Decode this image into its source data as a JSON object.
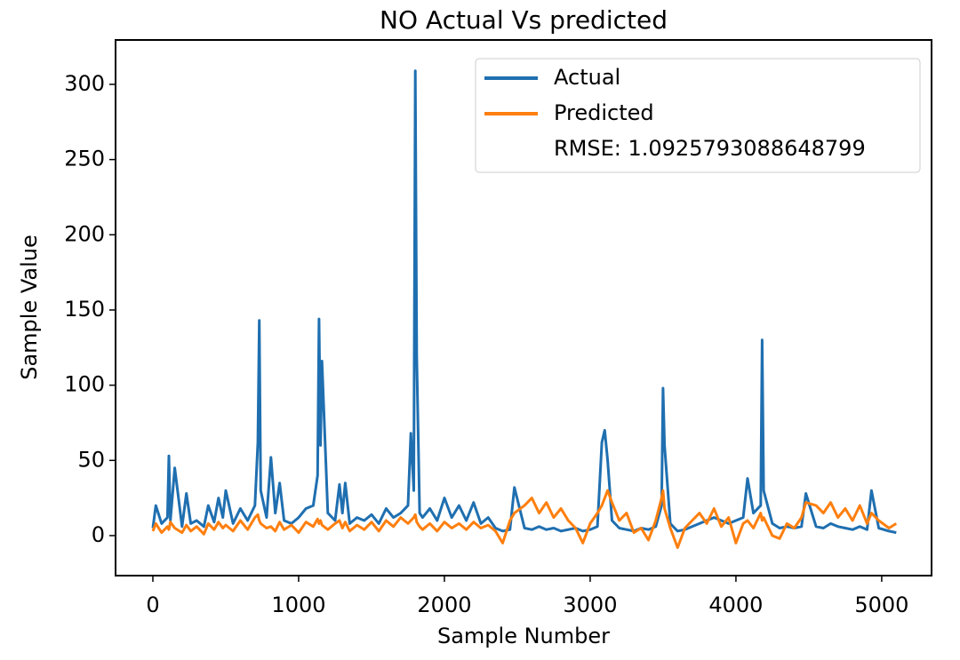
{
  "chart_data": {
    "type": "line",
    "title": "NO Actual Vs predicted",
    "x_label": "Sample Number",
    "y_label": "Sample Value",
    "x": [
      0,
      20,
      60,
      100,
      110,
      120,
      150,
      200,
      230,
      260,
      300,
      350,
      380,
      420,
      450,
      480,
      500,
      550,
      600,
      650,
      700,
      720,
      730,
      740,
      780,
      810,
      840,
      870,
      900,
      950,
      1000,
      1050,
      1100,
      1130,
      1140,
      1150,
      1160,
      1200,
      1250,
      1280,
      1300,
      1320,
      1350,
      1400,
      1450,
      1500,
      1550,
      1600,
      1650,
      1700,
      1750,
      1770,
      1790,
      1800,
      1810,
      1830,
      1850,
      1900,
      1950,
      2000,
      2050,
      2100,
      2150,
      2200,
      2250,
      2300,
      2350,
      2400,
      2450,
      2480,
      2550,
      2600,
      2650,
      2700,
      2750,
      2800,
      2850,
      2900,
      2950,
      3000,
      3050,
      3080,
      3100,
      3120,
      3150,
      3200,
      3250,
      3300,
      3350,
      3400,
      3450,
      3490,
      3500,
      3510,
      3550,
      3600,
      3650,
      3700,
      3750,
      3800,
      3850,
      3900,
      3950,
      4000,
      4050,
      4080,
      4120,
      4170,
      4180,
      4190,
      4250,
      4300,
      4350,
      4400,
      4450,
      4480,
      4550,
      4600,
      4650,
      4700,
      4750,
      4800,
      4850,
      4900,
      4930,
      4980,
      5050,
      5100
    ],
    "series": [
      {
        "name": "Actual",
        "color": "#1f6fb0",
        "values": [
          5,
          20,
          8,
          12,
          53,
          10,
          45,
          6,
          28,
          8,
          10,
          6,
          20,
          9,
          25,
          12,
          30,
          8,
          18,
          10,
          20,
          62,
          143,
          30,
          12,
          52,
          15,
          35,
          10,
          8,
          12,
          18,
          20,
          40,
          144,
          60,
          116,
          15,
          10,
          34,
          15,
          35,
          8,
          12,
          10,
          14,
          8,
          18,
          12,
          15,
          20,
          68,
          30,
          309,
          120,
          15,
          12,
          18,
          10,
          25,
          12,
          20,
          10,
          22,
          8,
          12,
          5,
          3,
          4,
          32,
          5,
          4,
          6,
          4,
          5,
          3,
          4,
          5,
          3,
          4,
          6,
          62,
          70,
          50,
          10,
          5,
          4,
          3,
          5,
          4,
          6,
          20,
          98,
          60,
          8,
          3,
          4,
          6,
          8,
          10,
          12,
          10,
          8,
          10,
          12,
          38,
          15,
          20,
          130,
          30,
          8,
          5,
          6,
          5,
          6,
          28,
          6,
          5,
          8,
          6,
          5,
          4,
          6,
          4,
          30,
          5,
          3,
          2
        ]
      },
      {
        "name": "Predicted",
        "color": "#ff7f0e",
        "values": [
          3,
          8,
          2,
          6,
          4,
          9,
          5,
          2,
          7,
          3,
          6,
          1,
          8,
          4,
          9,
          5,
          7,
          3,
          10,
          4,
          12,
          14,
          10,
          8,
          5,
          6,
          3,
          9,
          4,
          7,
          2,
          9,
          6,
          11,
          8,
          10,
          7,
          4,
          8,
          10,
          5,
          9,
          3,
          7,
          4,
          9,
          3,
          10,
          6,
          12,
          8,
          10,
          12,
          14,
          9,
          6,
          4,
          8,
          3,
          9,
          5,
          8,
          4,
          9,
          5,
          7,
          3,
          -5,
          10,
          15,
          20,
          25,
          15,
          22,
          12,
          18,
          10,
          5,
          -5,
          8,
          15,
          20,
          25,
          30,
          22,
          10,
          15,
          2,
          5,
          -3,
          10,
          25,
          30,
          18,
          5,
          -8,
          5,
          10,
          15,
          8,
          18,
          6,
          12,
          -5,
          8,
          10,
          5,
          15,
          10,
          12,
          0,
          -2,
          8,
          5,
          12,
          22,
          20,
          15,
          22,
          12,
          18,
          10,
          20,
          8,
          15,
          10,
          5,
          8
        ]
      }
    ],
    "legend_note": "RMSE: 1.0925793088648799",
    "legend_position": "upper right",
    "xlim": [
      -256,
      5342
    ],
    "ylim": [
      -26.6,
      329.5
    ],
    "xticks": [
      0,
      1000,
      2000,
      3000,
      4000,
      5000
    ],
    "yticks": [
      0,
      50,
      100,
      150,
      200,
      250,
      300
    ]
  }
}
